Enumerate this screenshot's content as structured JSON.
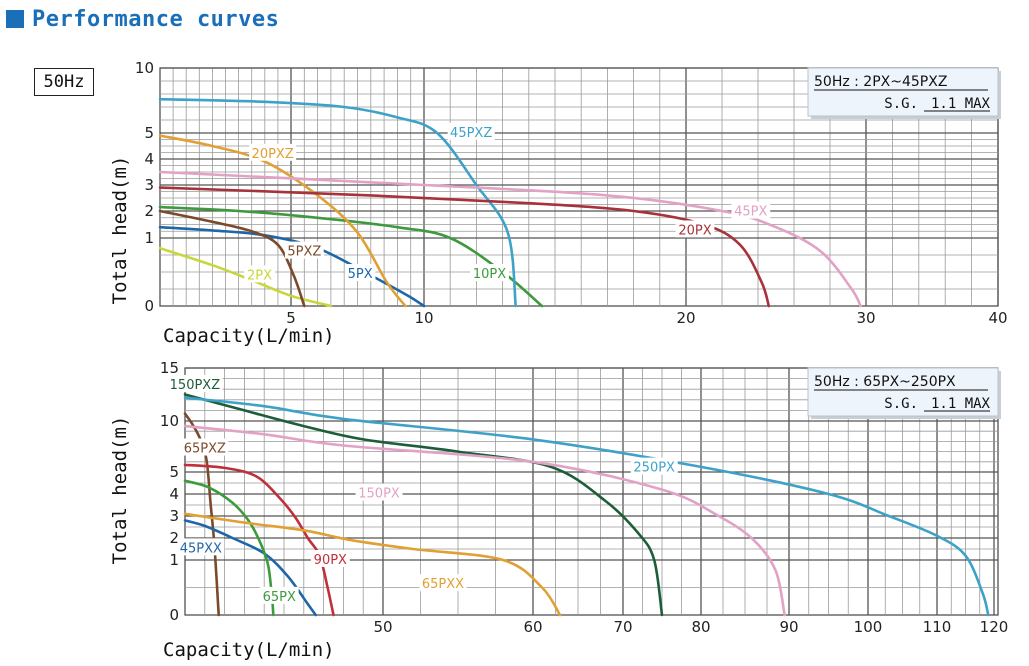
{
  "header": {
    "title": "Performance curves"
  },
  "freq_label": "50Hz",
  "chart_data": [
    {
      "type": "line",
      "info_title": "50Hz : 2PX~45PXZ",
      "info_sg_label": "S.G.",
      "info_sg_value": "1.1 MAX",
      "xlabel": "Capacity(L/min)",
      "ylabel": "Total head(m)",
      "xlim": [
        0,
        40
      ],
      "ylim": [
        0,
        10
      ],
      "x_ticks": [
        {
          "v": 5,
          "label": "5"
        },
        {
          "v": 10,
          "label": "10"
        },
        {
          "v": 20,
          "label": "20"
        },
        {
          "v": 30,
          "label": "30"
        },
        {
          "v": 40,
          "label": "40"
        }
      ],
      "y_ticks": [
        {
          "v": 0,
          "label": "0"
        },
        {
          "v": 1,
          "label": "1"
        },
        {
          "v": 2,
          "label": "2"
        },
        {
          "v": 3,
          "label": "3"
        },
        {
          "v": 4,
          "label": "4"
        },
        {
          "v": 5,
          "label": "5"
        },
        {
          "v": 10,
          "label": "10"
        }
      ],
      "series": [
        {
          "name": "2PX",
          "color": "#c8d63a",
          "points": [
            [
              0,
              0.85
            ],
            [
              2,
              0.6
            ],
            [
              3.5,
              0.38
            ],
            [
              5,
              0.15
            ],
            [
              6.5,
              0
            ]
          ],
          "label_at": [
            3.8,
            0.45
          ]
        },
        {
          "name": "5PX",
          "color": "#1e66a8",
          "points": [
            [
              0,
              1.4
            ],
            [
              2,
              1.28
            ],
            [
              4,
              1.1
            ],
            [
              6,
              0.85
            ],
            [
              8,
              0.45
            ],
            [
              9.4,
              0.15
            ],
            [
              10,
              0
            ]
          ],
          "label_at": [
            7.6,
            0.47
          ]
        },
        {
          "name": "5PXZ",
          "color": "#7a4a2a",
          "points": [
            [
              0,
              2.0
            ],
            [
              2,
              1.6
            ],
            [
              3.5,
              1.25
            ],
            [
              4.5,
              0.9
            ],
            [
              5.1,
              0.45
            ],
            [
              5.5,
              0
            ]
          ],
          "label_at": [
            5.5,
            0.8
          ]
        },
        {
          "name": "10PX",
          "color": "#3d9a3d",
          "points": [
            [
              0,
              2.15
            ],
            [
              3,
              2.0
            ],
            [
              6,
              1.75
            ],
            [
              9,
              1.4
            ],
            [
              11,
              1.0
            ],
            [
              13,
              0.5
            ],
            [
              14.5,
              0
            ]
          ],
          "label_at": [
            12.5,
            0.47
          ]
        },
        {
          "name": "20PXZ",
          "color": "#e0a033",
          "points": [
            [
              0,
              4.9
            ],
            [
              2,
              4.5
            ],
            [
              4,
              3.9
            ],
            [
              6,
              2.6
            ],
            [
              7.5,
              1.2
            ],
            [
              8.6,
              0.35
            ],
            [
              9.3,
              0
            ]
          ],
          "label_at": [
            4.3,
            4.2
          ]
        },
        {
          "name": "45PXZ",
          "color": "#3ea2c8",
          "points": [
            [
              0,
              7.6
            ],
            [
              4,
              7.4
            ],
            [
              7,
              7.0
            ],
            [
              9,
              6.2
            ],
            [
              10.5,
              5.0
            ],
            [
              12,
              3.0
            ],
            [
              13.2,
              1.2
            ],
            [
              13.5,
              0
            ]
          ],
          "label_at": [
            11.8,
            5.0
          ]
        },
        {
          "name": "20PX",
          "color": "#a8323a",
          "points": [
            [
              0,
              2.9
            ],
            [
              8,
              2.6
            ],
            [
              14,
              2.3
            ],
            [
              18,
              2.0
            ],
            [
              21,
              1.5
            ],
            [
              23,
              0.9
            ],
            [
              24.2,
              0.35
            ],
            [
              24.6,
              0
            ]
          ],
          "label_at": [
            20.5,
            1.28
          ]
        },
        {
          "name": "45PX",
          "color": "#e2a2c6",
          "points": [
            [
              0,
              3.5
            ],
            [
              10,
              3.0
            ],
            [
              17,
              2.6
            ],
            [
              22,
              2.0
            ],
            [
              25,
              1.4
            ],
            [
              27.5,
              0.8
            ],
            [
              29.2,
              0.25
            ],
            [
              29.7,
              0
            ]
          ],
          "label_at": [
            23.6,
            1.98
          ]
        }
      ]
    },
    {
      "type": "line",
      "info_title": "50Hz : 65PX~250PX",
      "info_sg_label": "S.G.",
      "info_sg_value": "1.1 MAX",
      "xlabel": "Capacity(L/min)",
      "ylabel": "Total head(m)",
      "xlim": [
        0,
        120
      ],
      "ylim": [
        0,
        15
      ],
      "x_ticks": [
        {
          "v": 50,
          "label": "50"
        },
        {
          "v": 60,
          "label": "60"
        },
        {
          "v": 70,
          "label": "70"
        },
        {
          "v": 80,
          "label": "80"
        },
        {
          "v": 90,
          "label": "90"
        },
        {
          "v": 100,
          "label": "100"
        },
        {
          "v": 110,
          "label": "110"
        },
        {
          "v": 120,
          "label": "120"
        }
      ],
      "y_ticks": [
        {
          "v": 0,
          "label": "0"
        },
        {
          "v": 1,
          "label": "1"
        },
        {
          "v": 2,
          "label": "2"
        },
        {
          "v": 3,
          "label": "3"
        },
        {
          "v": 4,
          "label": "4"
        },
        {
          "v": 5,
          "label": "5"
        },
        {
          "v": 10,
          "label": "10"
        },
        {
          "v": 15,
          "label": "15"
        }
      ],
      "series": [
        {
          "name": "65PXZ",
          "color": "#7a4a2a",
          "points": [
            [
              0,
              10.7
            ],
            [
              2,
              9.6
            ],
            [
              4,
              8.1
            ],
            [
              5.5,
              6.0
            ],
            [
              6.5,
              3.5
            ],
            [
              7.5,
              1.5
            ],
            [
              8.5,
              0
            ]
          ],
          "label_at": [
            5,
            7.3
          ]
        },
        {
          "name": "45PXX",
          "color": "#1e66a8",
          "points": [
            [
              0,
              2.8
            ],
            [
              5,
              2.55
            ],
            [
              12,
              2.0
            ],
            [
              20,
              1.3
            ],
            [
              26,
              0.7
            ],
            [
              31,
              0.2
            ],
            [
              33,
              0
            ]
          ],
          "label_at": [
            4,
            1.53
          ]
        },
        {
          "name": "65PX",
          "color": "#3d9a3d",
          "points": [
            [
              0,
              4.6
            ],
            [
              6,
              4.3
            ],
            [
              12,
              3.6
            ],
            [
              16,
              2.8
            ],
            [
              19,
              1.8
            ],
            [
              21,
              0.9
            ],
            [
              22,
              0.3
            ],
            [
              22.3,
              0
            ]
          ],
          "label_at": [
            23.8,
            0.33
          ]
        },
        {
          "name": "90PX",
          "color": "#c0303a",
          "points": [
            [
              0,
              5.7
            ],
            [
              10,
              5.4
            ],
            [
              18,
              4.8
            ],
            [
              24,
              3.8
            ],
            [
              28,
              2.9
            ],
            [
              31,
              2.0
            ],
            [
              34,
              1.2
            ],
            [
              36,
              0.5
            ],
            [
              37.5,
              0
            ]
          ],
          "label_at": [
            36.7,
            1.0
          ]
        },
        {
          "name": "65PXX",
          "color": "#e0a033",
          "points": [
            [
              0,
              3.1
            ],
            [
              15,
              2.7
            ],
            [
              30,
              2.35
            ],
            [
              42,
              1.9
            ],
            [
              52,
              1.5
            ],
            [
              58,
              1.0
            ],
            [
              61,
              0.5
            ],
            [
              63,
              0
            ]
          ],
          "label_at": [
            54,
            0.56
          ]
        },
        {
          "name": "150PXZ",
          "color": "#1d5e3a",
          "points": [
            [
              0,
              12.5
            ],
            [
              15,
              11.0
            ],
            [
              30,
              9.5
            ],
            [
              45,
              8.2
            ],
            [
              55,
              7.0
            ],
            [
              62,
              5.5
            ],
            [
              68,
              3.7
            ],
            [
              72,
              2.2
            ],
            [
              74,
              1.0
            ],
            [
              75,
              0
            ]
          ],
          "label_at": [
            2.5,
            13.4
          ]
        },
        {
          "name": "150PX",
          "color": "#e2a2c6",
          "points": [
            [
              0,
              9.5
            ],
            [
              20,
              8.7
            ],
            [
              40,
              7.6
            ],
            [
              60,
              6.0
            ],
            [
              75,
              4.2
            ],
            [
              82,
              3.0
            ],
            [
              86,
              1.9
            ],
            [
              88.5,
              0.8
            ],
            [
              89.5,
              0
            ]
          ],
          "label_at": [
            49,
            4.02
          ]
        },
        {
          "name": "250PX",
          "color": "#3ea2c8",
          "points": [
            [
              0,
              12.2
            ],
            [
              20,
              11.4
            ],
            [
              40,
              10.2
            ],
            [
              60,
              8.2
            ],
            [
              80,
              5.5
            ],
            [
              95,
              4.0
            ],
            [
              103,
              3.0
            ],
            [
              110,
              2.1
            ],
            [
              115,
              1.2
            ],
            [
              118,
              0.4
            ],
            [
              119,
              0
            ]
          ],
          "label_at": [
            74,
            5.43
          ]
        }
      ]
    }
  ]
}
